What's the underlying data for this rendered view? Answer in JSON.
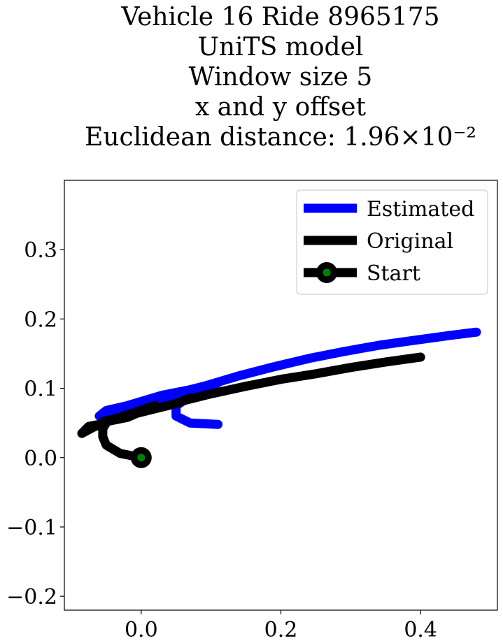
{
  "chart_data": {
    "type": "line",
    "title_lines": [
      "Vehicle 16 Ride 8965175",
      "UniTS model",
      "Window size 5",
      "x and y offset",
      "Euclidean distance: 1.96×10⁻²"
    ],
    "xlabel": "",
    "ylabel": "",
    "xlim": [
      -0.11,
      0.51
    ],
    "ylim": [
      -0.22,
      0.4
    ],
    "xticks": [
      0.0,
      0.2,
      0.4
    ],
    "xtick_labels": [
      "0.0",
      "0.2",
      "0.4"
    ],
    "yticks": [
      -0.2,
      -0.1,
      0.0,
      0.1,
      0.2,
      0.3
    ],
    "ytick_labels": [
      "−0.2",
      "−0.1",
      "0.0",
      "0.1",
      "0.2",
      "0.3"
    ],
    "grid": false,
    "legend_position": "top-right",
    "series": [
      {
        "name": "Estimated",
        "color": "#0000ff",
        "x": [
          0.11,
          0.07,
          0.05,
          0.05,
          0.08,
          0.11,
          0.07,
          0.03,
          -0.02,
          -0.05,
          -0.06,
          -0.05,
          -0.01,
          0.04,
          0.09,
          0.14,
          0.19,
          0.24,
          0.29,
          0.34,
          0.39,
          0.44,
          0.48
        ],
        "y": [
          0.048,
          0.05,
          0.06,
          0.075,
          0.095,
          0.108,
          0.098,
          0.09,
          0.075,
          0.068,
          0.06,
          0.065,
          0.075,
          0.088,
          0.103,
          0.118,
          0.131,
          0.143,
          0.153,
          0.162,
          0.169,
          0.176,
          0.181
        ]
      },
      {
        "name": "Original",
        "color": "#000000",
        "x": [
          0.0,
          -0.03,
          -0.05,
          -0.055,
          -0.055,
          -0.05,
          -0.075,
          -0.085,
          -0.07,
          -0.05,
          -0.02,
          0.02,
          -0.01,
          -0.04,
          -0.055,
          -0.03,
          0.01,
          0.05,
          0.07,
          0.06,
          0.1,
          0.15,
          0.2,
          0.25,
          0.3,
          0.35,
          0.4
        ],
        "y": [
          0.0,
          0.006,
          0.018,
          0.03,
          0.042,
          0.05,
          0.045,
          0.035,
          0.043,
          0.052,
          0.058,
          0.075,
          0.065,
          0.055,
          0.052,
          0.058,
          0.068,
          0.078,
          0.086,
          0.082,
          0.092,
          0.103,
          0.113,
          0.121,
          0.13,
          0.138,
          0.145
        ]
      },
      {
        "name": "Start",
        "color": "#000000",
        "marker_color": "#008000",
        "x": [
          0.0
        ],
        "y": [
          0.0
        ]
      }
    ]
  }
}
